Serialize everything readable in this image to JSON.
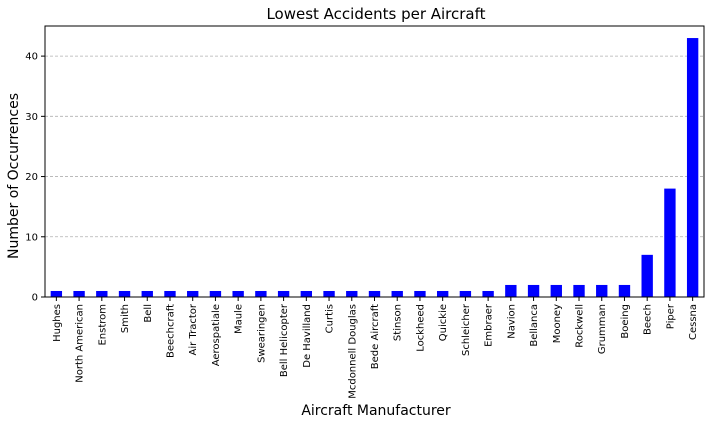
{
  "chart_data": {
    "type": "bar",
    "title": "Lowest Accidents per Aircraft",
    "xlabel": "Aircraft Manufacturer",
    "ylabel": "Number of Occurrences",
    "categories": [
      "Hughes",
      "North American",
      "Enstrom",
      "Smith",
      "Bell",
      "Beechcraft",
      "Air Tractor",
      "Aerospatiale",
      "Maule",
      "Swearingen",
      "Bell Helicopter",
      "De Havilland",
      "Curtis",
      "Mcdonnell Douglas",
      "Bede Aircraft",
      "Stinson",
      "Lockheed",
      "Quickie",
      "Schleicher",
      "Embraer",
      "Navion",
      "Bellanca",
      "Mooney",
      "Rockwell",
      "Grumman",
      "Boeing",
      "Beech",
      "Piper",
      "Cessna"
    ],
    "values": [
      1,
      1,
      1,
      1,
      1,
      1,
      1,
      1,
      1,
      1,
      1,
      1,
      1,
      1,
      1,
      1,
      1,
      1,
      1,
      1,
      2,
      2,
      2,
      2,
      2,
      2,
      7,
      18,
      43
    ],
    "ylim": [
      0,
      45
    ],
    "yticks": [
      0,
      10,
      20,
      30,
      40
    ],
    "grid": "y",
    "legend": "none",
    "bar_color": "#0000ff",
    "grid_color": "#b0b0b0"
  }
}
